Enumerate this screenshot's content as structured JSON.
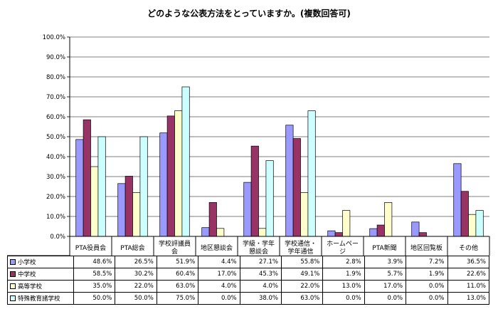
{
  "chart_data": {
    "type": "bar",
    "title": "どのような公表方法をとっていますか。(複数回答可)",
    "categories": [
      "PTA役員会",
      "PTA総会",
      "学校評議員会",
      "地区懇談会",
      "学級・学年懇談会",
      "学校通信・学年通信",
      "ホームページ",
      "PTA新聞",
      "地区回覧板",
      "その他"
    ],
    "category_lines": [
      [
        "PTA役員会"
      ],
      [
        "PTA総会"
      ],
      [
        "学校評議員",
        "会"
      ],
      [
        "地区懇談会"
      ],
      [
        "学級・学年",
        "懇談会"
      ],
      [
        "学校通信・",
        "学年通信"
      ],
      [
        "ホームペー",
        "ジ"
      ],
      [
        "PTA新聞"
      ],
      [
        "地区回覧板"
      ],
      [
        "その他"
      ]
    ],
    "series": [
      {
        "name": "小学校",
        "color": "#9999FF",
        "values": [
          48.6,
          26.5,
          51.9,
          4.4,
          27.1,
          55.8,
          2.8,
          3.9,
          7.2,
          36.5
        ],
        "labels": [
          "48.6%",
          "26.5%",
          "51.9%",
          "4.4%",
          "27.1%",
          "55.8%",
          "2.8%",
          "3.9%",
          "7.2%",
          "36.5%"
        ]
      },
      {
        "name": "中学校",
        "color": "#993366",
        "values": [
          58.5,
          30.2,
          60.4,
          17.0,
          45.3,
          49.1,
          1.9,
          5.7,
          1.9,
          22.6
        ],
        "labels": [
          "58.5%",
          "30.2%",
          "60.4%",
          "17.0%",
          "45.3%",
          "49.1%",
          "1.9%",
          "5.7%",
          "1.9%",
          "22.6%"
        ]
      },
      {
        "name": "高等学校",
        "color": "#FFFFCC",
        "values": [
          35.0,
          22.0,
          63.0,
          4.0,
          4.0,
          22.0,
          13.0,
          17.0,
          0.0,
          11.0
        ],
        "labels": [
          "35.0%",
          "22.0%",
          "63.0%",
          "4.0%",
          "4.0%",
          "22.0%",
          "13.0%",
          "17.0%",
          "0.0%",
          "11.0%"
        ]
      },
      {
        "name": "特殊教育諸学校",
        "color": "#CCFFFF",
        "values": [
          50.0,
          50.0,
          75.0,
          0.0,
          38.0,
          63.0,
          0.0,
          0.0,
          0.0,
          13.0
        ],
        "labels": [
          "50.0%",
          "50.0%",
          "75.0%",
          "0.0%",
          "38.0%",
          "63.0%",
          "0.0%",
          "0.0%",
          "0.0%",
          "13.0%"
        ]
      }
    ],
    "ylim": [
      0,
      100
    ],
    "y_ticks": [
      "0.0%",
      "10.0%",
      "20.0%",
      "30.0%",
      "40.0%",
      "50.0%",
      "60.0%",
      "70.0%",
      "80.0%",
      "90.0%",
      "100.0%"
    ],
    "grid": true,
    "legend": "bottom-table"
  }
}
